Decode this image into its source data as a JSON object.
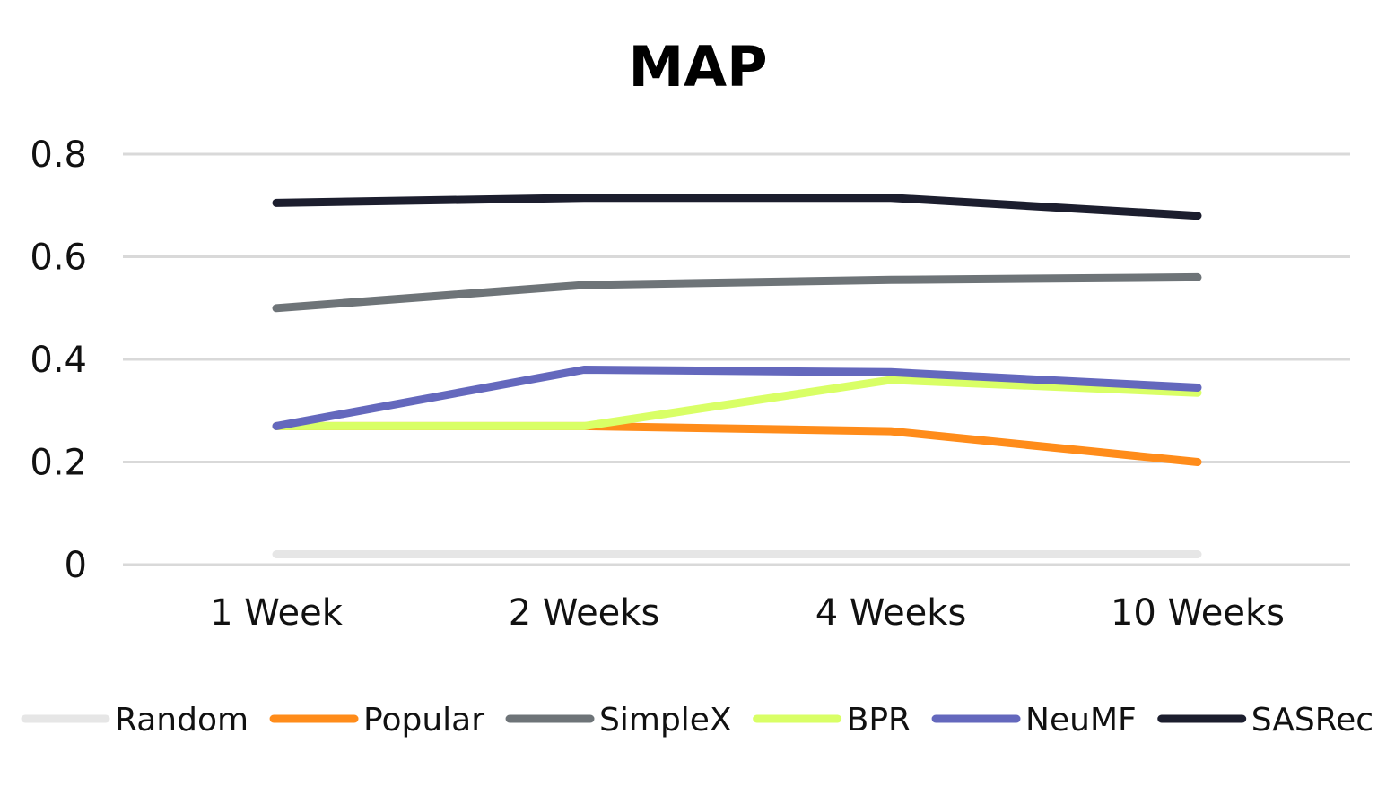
{
  "chart_data": {
    "type": "line",
    "title": "MAP",
    "xlabel": "",
    "ylabel": "",
    "categories": [
      "1 Week",
      "2 Weeks",
      "4 Weeks",
      "10 Weeks"
    ],
    "y_ticks": [
      "0",
      "0.2",
      "0.4",
      "0.6",
      "0.8"
    ],
    "ylim": [
      0,
      0.8
    ],
    "grid": true,
    "legend_position": "bottom",
    "series": [
      {
        "name": "Random",
        "color": "#e6e6e6",
        "values": [
          0.02,
          0.02,
          0.02,
          0.02
        ]
      },
      {
        "name": "Popular",
        "color": "#ff8c1a",
        "values": [
          0.27,
          0.27,
          0.26,
          0.2
        ]
      },
      {
        "name": "SimpleX",
        "color": "#6e7478",
        "values": [
          0.5,
          0.545,
          0.555,
          0.56
        ]
      },
      {
        "name": "BPR",
        "color": "#d9ff66",
        "values": [
          0.27,
          0.27,
          0.36,
          0.335
        ]
      },
      {
        "name": "NeuMF",
        "color": "#6468bd",
        "values": [
          0.27,
          0.38,
          0.375,
          0.345
        ]
      },
      {
        "name": "SASRec",
        "color": "#1c1e2e",
        "values": [
          0.705,
          0.715,
          0.715,
          0.68
        ]
      }
    ]
  }
}
